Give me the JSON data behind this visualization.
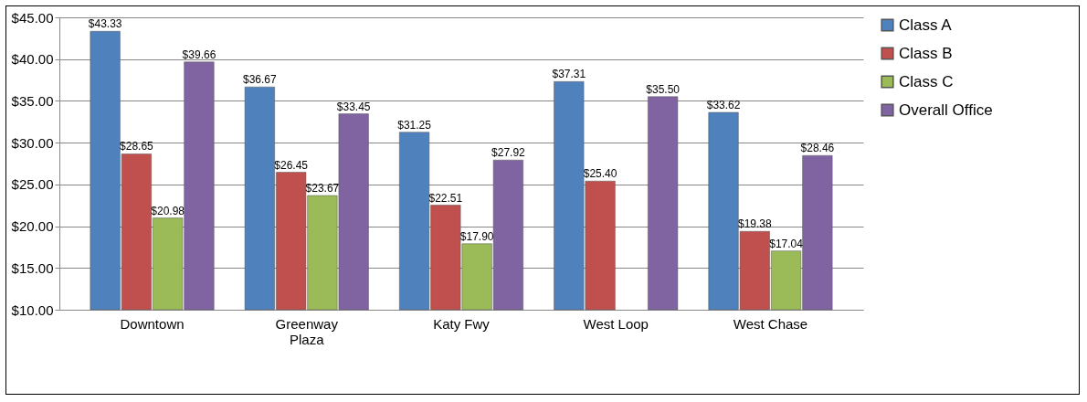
{
  "chart_data": {
    "type": "bar",
    "categories": [
      "Downtown",
      "Greenway Plaza",
      "Katy Fwy",
      "West Loop",
      "West Chase"
    ],
    "series": [
      {
        "name": "Class A",
        "color": "#4f81bd",
        "values": [
          43.33,
          36.67,
          31.25,
          37.31,
          33.62
        ],
        "value_labels": [
          "$43.33",
          "$36.67",
          "$31.25",
          "$37.31",
          "$33.62"
        ]
      },
      {
        "name": "Class B",
        "color": "#c0504d",
        "values": [
          28.65,
          26.45,
          22.51,
          25.4,
          19.38
        ],
        "value_labels": [
          "$28.65",
          "$26.45",
          "$22.51",
          "$25.40",
          "$19.38"
        ]
      },
      {
        "name": "Class C",
        "color": "#9bbb59",
        "values": [
          20.98,
          23.67,
          17.9,
          null,
          17.04
        ],
        "value_labels": [
          "$20.98",
          "$23.67",
          "$17.90",
          null,
          "$17.04"
        ]
      },
      {
        "name": "Overall Office",
        "color": "#8064a2",
        "values": [
          39.66,
          33.45,
          27.92,
          35.5,
          28.46
        ],
        "value_labels": [
          "$39.66",
          "$33.45",
          "$27.92",
          "$35.50",
          "$28.46"
        ]
      }
    ],
    "ylim": [
      10,
      45
    ],
    "yticks": [
      {
        "value": 10,
        "label": "$10.00"
      },
      {
        "value": 15,
        "label": "$15.00"
      },
      {
        "value": 20,
        "label": "$20.00"
      },
      {
        "value": 25,
        "label": "$25.00"
      },
      {
        "value": 30,
        "label": "$30.00"
      },
      {
        "value": 35,
        "label": "$35.00"
      },
      {
        "value": 40,
        "label": "$40.00"
      },
      {
        "value": 45,
        "label": "$45.00"
      }
    ],
    "grid": "y",
    "legend": "right"
  }
}
